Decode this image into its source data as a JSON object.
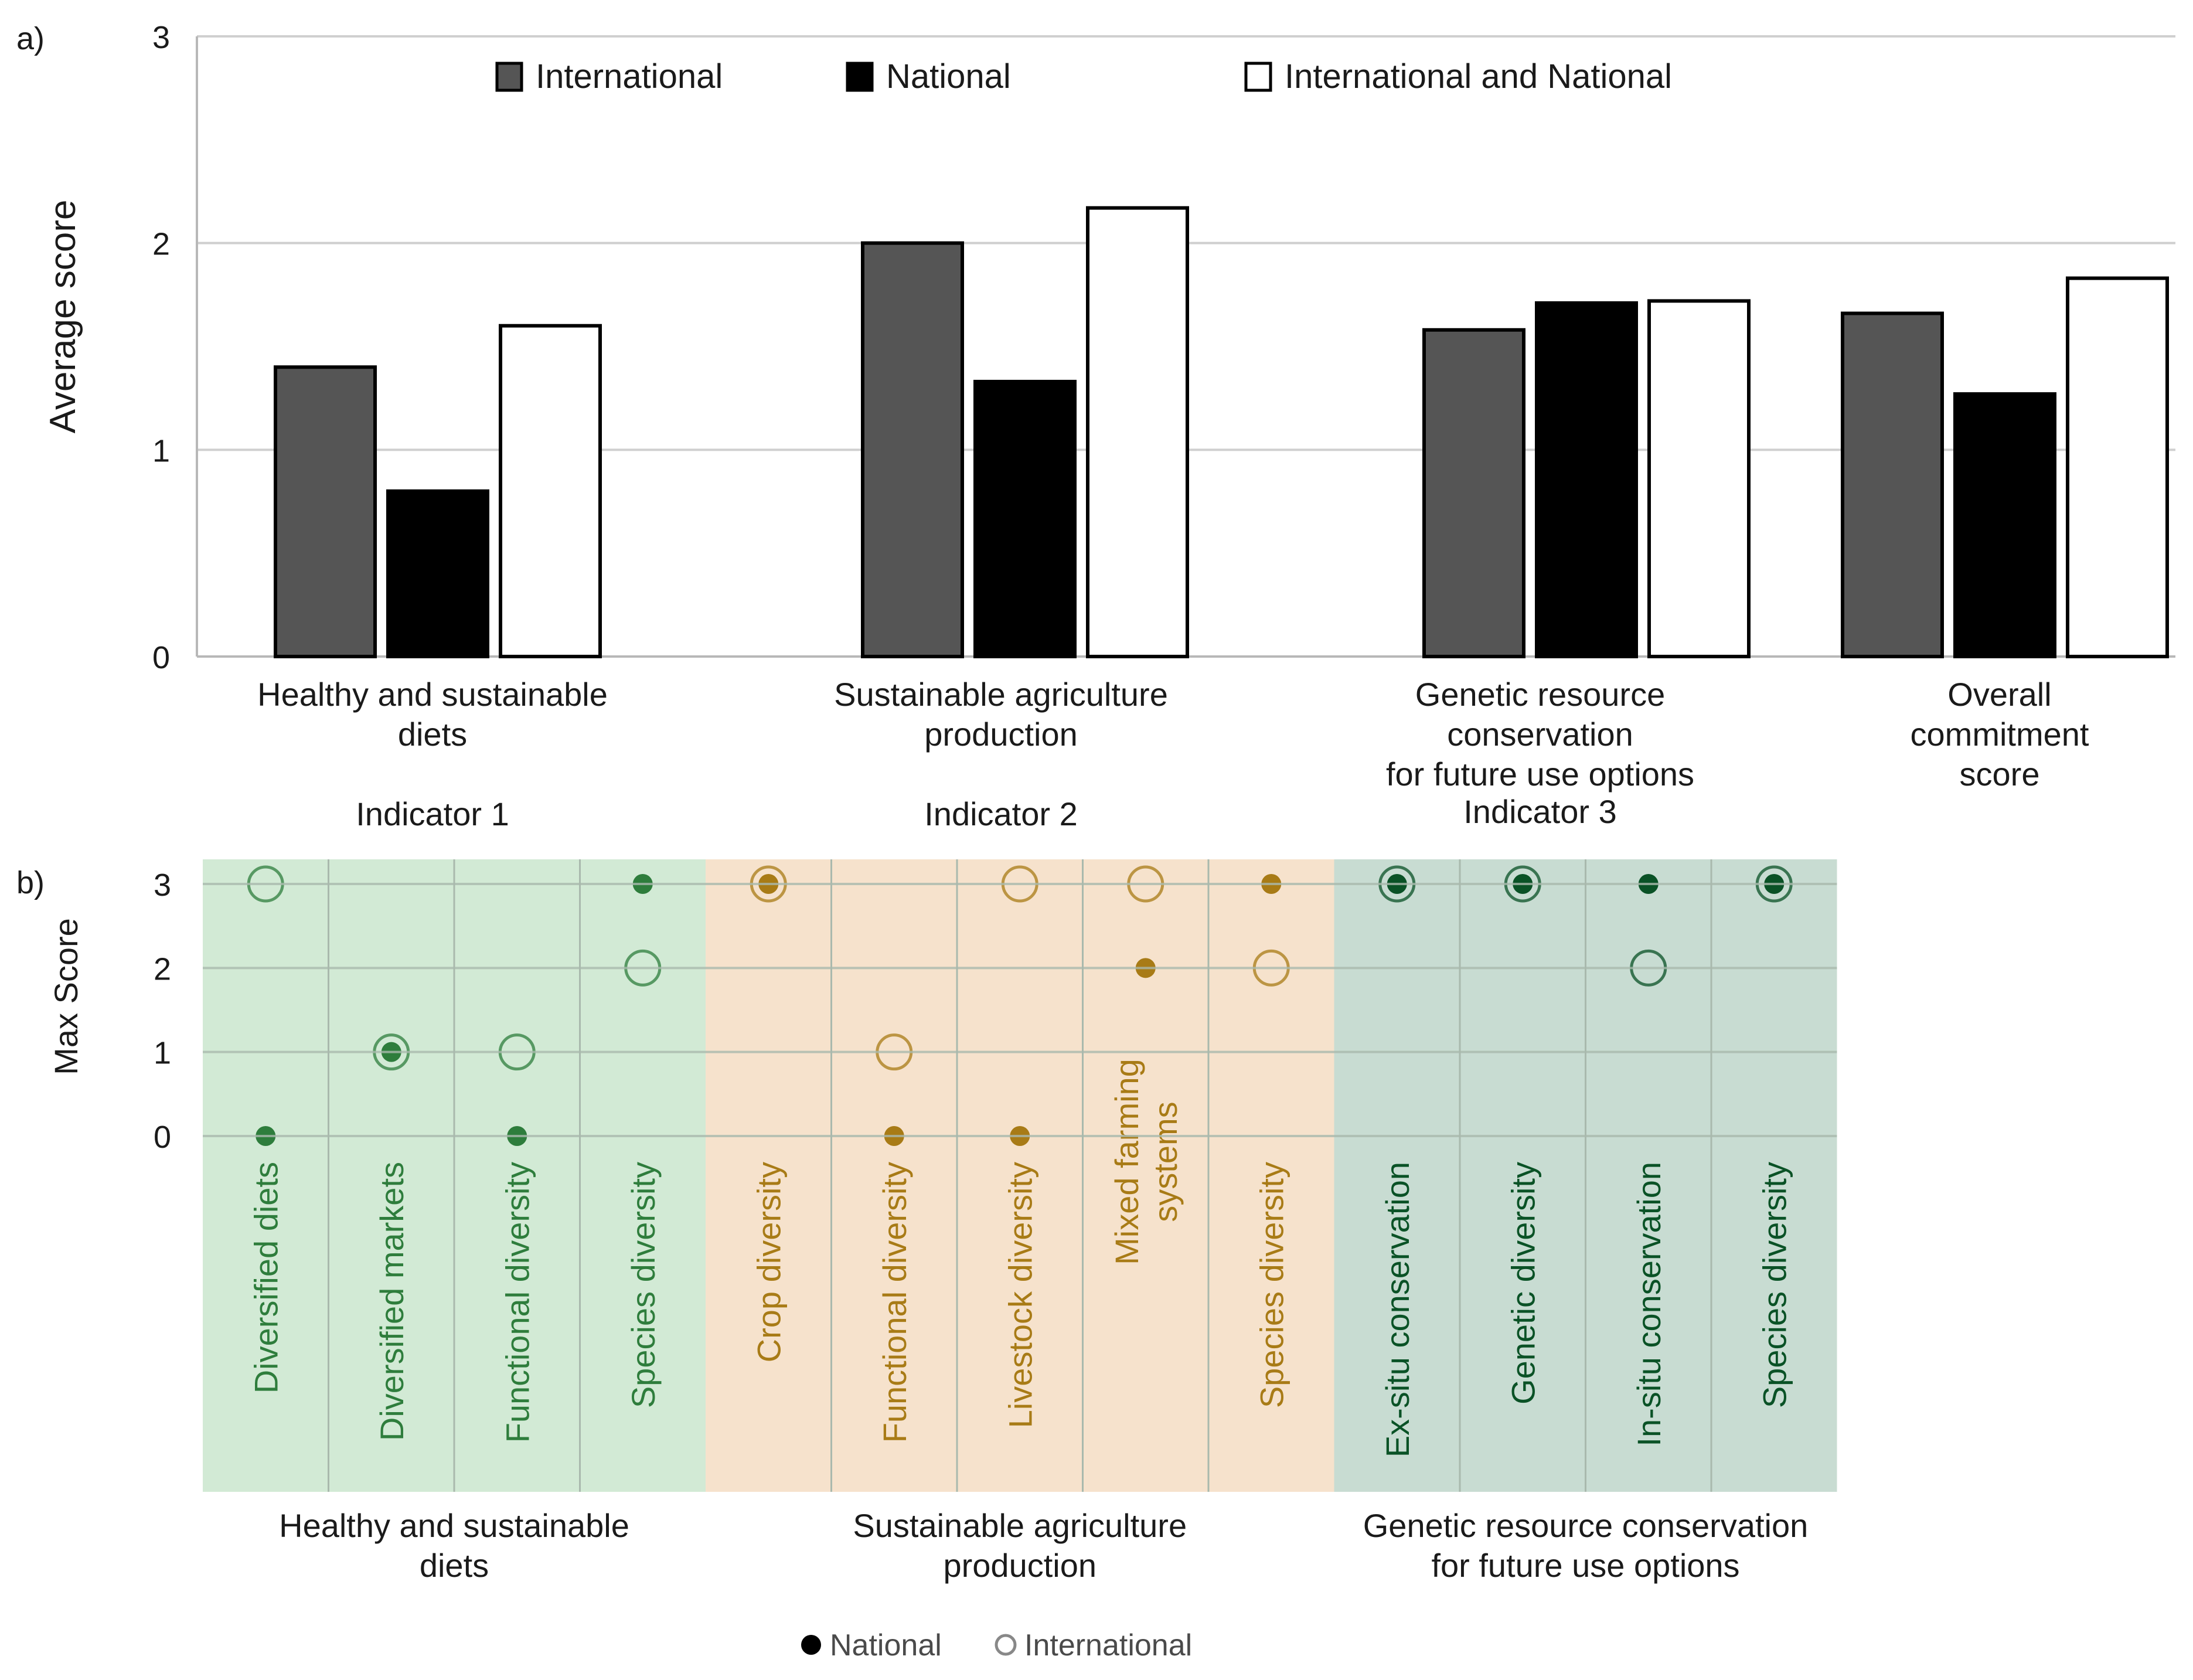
{
  "colors": {
    "international": "#555555",
    "national": "#000000",
    "combined": "#ffffff",
    "outline": "#000000",
    "grid": "#cfcfcf",
    "axis": "#b8b8b8",
    "diets_bg": "#d2ead5",
    "diets_fg": "#2e7d3c",
    "agri_bg": "#f6e2cc",
    "agri_fg": "#a87b16",
    "genetic_bg": "#c8dcd2",
    "genetic_fg": "#0a5226",
    "cell_line": "#a9b9ad",
    "text": "#1a1a1a",
    "legend_grey": "#4a4a4a"
  },
  "chart_data": [
    {
      "type": "bar",
      "panel_label": "a)",
      "ylabel": "Average score",
      "ylim": [
        0,
        3
      ],
      "yticks": [
        "0",
        "1",
        "2",
        "3"
      ],
      "grid": true,
      "legend_position": "top",
      "categories": [
        {
          "label_lines": [
            "Healthy and sustainable",
            "diets"
          ],
          "indicator": "Indicator 1"
        },
        {
          "label_lines": [
            "Sustainable agriculture",
            "production"
          ],
          "indicator": "Indicator 2"
        },
        {
          "label_lines": [
            "Genetic resource",
            "conservation",
            "for future use options"
          ],
          "indicator": "Indicator 3"
        },
        {
          "label_lines": [
            "Overall",
            "commitment",
            "score"
          ],
          "indicator": ""
        }
      ],
      "series": [
        {
          "name": "International",
          "key": "international",
          "values": [
            1.4,
            2.0,
            1.58,
            1.66
          ]
        },
        {
          "name": "National",
          "key": "national",
          "values": [
            0.8,
            1.33,
            1.71,
            1.27
          ]
        },
        {
          "name": "International and National",
          "key": "combined",
          "values": [
            1.6,
            2.17,
            1.72,
            1.83
          ]
        }
      ]
    },
    {
      "type": "scatter",
      "panel_label": "b)",
      "ylabel": "Max Score",
      "ylim": [
        0,
        3
      ],
      "yticks": [
        "0",
        "1",
        "2",
        "3"
      ],
      "grid": true,
      "legend_position": "bottom-center",
      "legend": {
        "national": "National",
        "international": "International"
      },
      "groups": [
        {
          "name_lines": [
            "Healthy and sustainable",
            "diets"
          ],
          "theme": "diets",
          "categories": [
            {
              "label": [
                "Diversified diets"
              ],
              "national": 0,
              "international": 3
            },
            {
              "label": [
                "Diversified markets"
              ],
              "national": 1,
              "international": 1
            },
            {
              "label": [
                "Functional diversity"
              ],
              "national": 0,
              "international": 1
            },
            {
              "label": [
                "Species diversity"
              ],
              "national": 3,
              "international": 2
            }
          ]
        },
        {
          "name_lines": [
            "Sustainable agriculture",
            "production"
          ],
          "theme": "agri",
          "categories": [
            {
              "label": [
                "Crop diversity"
              ],
              "national": 3,
              "international": 3
            },
            {
              "label": [
                "Functional diversity"
              ],
              "national": 0,
              "international": 1
            },
            {
              "label": [
                "Livestock diversity"
              ],
              "national": 0,
              "international": 3
            },
            {
              "label": [
                "Mixed farming",
                "systems"
              ],
              "national": 2,
              "international": 3
            },
            {
              "label": [
                "Species diversity"
              ],
              "national": 3,
              "international": 2
            }
          ]
        },
        {
          "name_lines": [
            "Genetic resource conservation",
            "for future use options"
          ],
          "theme": "genetic",
          "categories": [
            {
              "label": [
                "Ex-situ conservation"
              ],
              "national": 3,
              "international": 3
            },
            {
              "label": [
                "Genetic diversity"
              ],
              "national": 3,
              "international": 3
            },
            {
              "label": [
                "In-situ conservation"
              ],
              "national": 3,
              "international": 2
            },
            {
              "label": [
                "Species diversity"
              ],
              "national": 3,
              "international": 3
            }
          ]
        }
      ]
    }
  ]
}
